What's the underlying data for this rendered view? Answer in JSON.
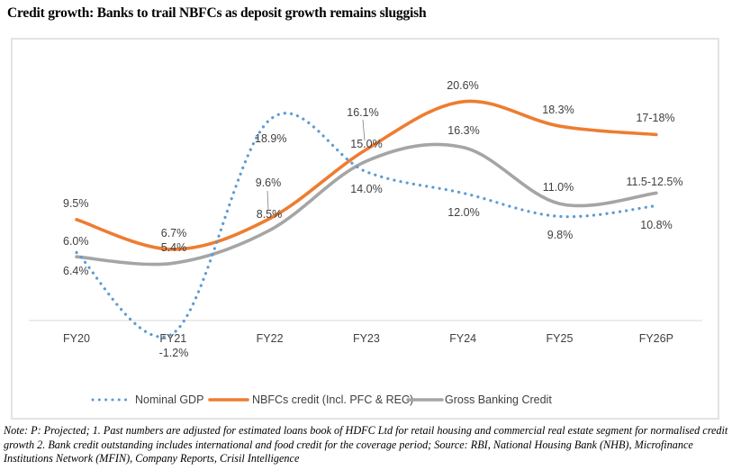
{
  "title": "Credit growth: Banks to trail NBFCs as deposit growth remains sluggish",
  "note": "Note: P: Projected; 1. Past numbers are adjusted for estimated loans book of HDFC Ltd for retail housing and commercial real estate segment for normalised credit growth 2. Bank credit outstanding includes international and food credit for the coverage period; Source: RBI, National Housing Bank (NHB), Microfinance Institutions Network (MFIN), Company Reports, Crisil Intelligence",
  "chart_data": {
    "type": "line",
    "title": "Credit growth: Banks to trail NBFCs as deposit growth remains sluggish",
    "xlabel": "",
    "ylabel": "",
    "categories": [
      "FY20",
      "FY21",
      "FY22",
      "FY23",
      "FY24",
      "FY25",
      "FY26P"
    ],
    "ylim": [
      -1.2,
      22
    ],
    "grid": false,
    "legend_position": "bottom",
    "series": [
      {
        "name": "Nominal GDP",
        "color": "#5B9BD5",
        "style": "dotted",
        "values": [
          6.4,
          -1.2,
          18.9,
          14.0,
          12.0,
          9.8,
          10.8
        ],
        "labels": [
          "6.4%",
          "-1.2%",
          "18.9%",
          "14.0%",
          "12.0%",
          "9.8%",
          "10.8%"
        ]
      },
      {
        "name": "NBFCs credit (Incl. PFC & REC)",
        "color": "#ED7D31",
        "style": "solid",
        "values": [
          9.5,
          6.7,
          9.6,
          16.1,
          20.6,
          18.3,
          17.5
        ],
        "labels": [
          "9.5%",
          "6.7%",
          "9.6%",
          "16.1%",
          "20.6%",
          "18.3%",
          "17-18%"
        ]
      },
      {
        "name": "Gross Banking Credit",
        "color": "#A5A5A5",
        "style": "solid",
        "values": [
          6.0,
          5.4,
          8.5,
          15.0,
          16.3,
          11.0,
          12.0
        ],
        "labels": [
          "6.0%",
          "5.4%",
          "8.5%",
          "15.0%",
          "16.3%",
          "11.0%",
          "11.5-12.5%"
        ]
      }
    ]
  }
}
